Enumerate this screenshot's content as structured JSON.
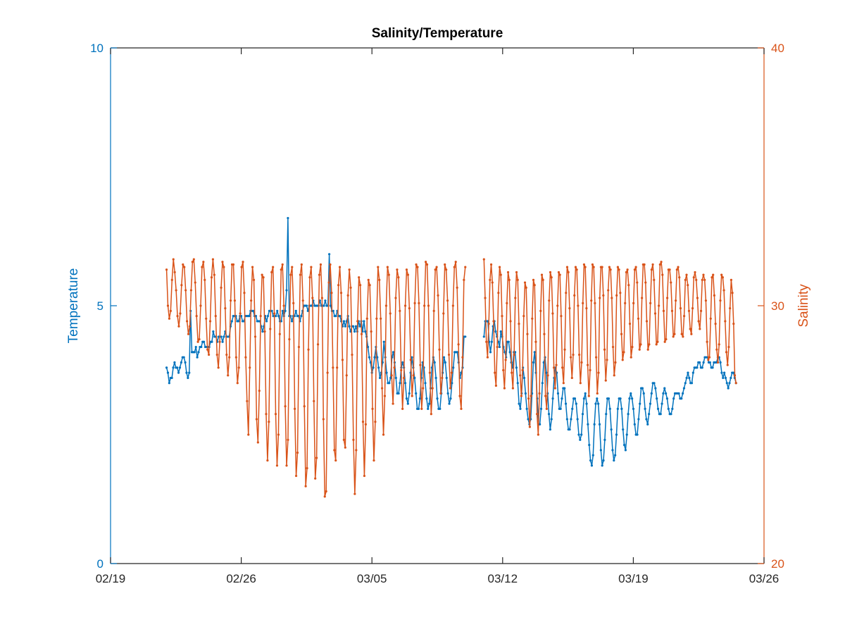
{
  "chart_data": {
    "type": "line",
    "title": "Salinity/Temperature",
    "x_ticks": [
      "02/19",
      "02/26",
      "03/05",
      "03/12",
      "03/19",
      "03/26"
    ],
    "x_range": [
      "02/19",
      "03/26"
    ],
    "left_axis": {
      "label": "Temperature",
      "range": [
        0,
        10
      ],
      "ticks": [
        "0",
        "5",
        "10"
      ],
      "color": "#0072BD"
    },
    "right_axis": {
      "label": "Salinity",
      "range": [
        20,
        40
      ],
      "ticks": [
        "20",
        "30",
        "40"
      ],
      "color": "#D95319"
    },
    "grid": false,
    "legend": "none",
    "sampling_interval_hours": 2,
    "series": [
      {
        "axis": "left",
        "color": "#0072BD",
        "segments": [
          {
            "t_start": "02/22 00:00",
            "t_end": "03/10 00:00",
            "values": [
              3.8,
              3.7,
              3.5,
              3.6,
              3.6,
              3.8,
              3.9,
              3.8,
              3.8,
              3.7,
              3.8,
              3.9,
              4.0,
              4.0,
              3.9,
              3.7,
              3.6,
              3.7,
              4.9,
              4.1,
              4.1,
              4.1,
              4.2,
              4.0,
              4.1,
              4.2,
              4.2,
              4.3,
              4.3,
              4.2,
              4.2,
              4.2,
              4.2,
              4.3,
              4.3,
              4.5,
              4.4,
              4.4,
              4.3,
              4.4,
              4.4,
              4.4,
              4.3,
              4.4,
              4.5,
              4.4,
              4.4,
              4.4,
              4.6,
              4.7,
              4.8,
              4.8,
              4.8,
              4.7,
              4.7,
              4.8,
              4.8,
              4.7,
              4.7,
              4.8,
              4.8,
              4.8,
              4.8,
              4.9,
              4.9,
              4.9,
              4.8,
              4.8,
              4.7,
              4.7,
              4.7,
              4.6,
              4.5,
              4.6,
              4.8,
              4.7,
              4.8,
              4.9,
              4.9,
              4.9,
              4.8,
              4.8,
              4.8,
              4.9,
              4.8,
              4.7,
              4.7,
              4.9,
              4.8,
              4.9,
              5.3,
              6.7,
              4.8,
              4.8,
              4.7,
              4.8,
              4.8,
              4.9,
              4.8,
              4.8,
              4.7,
              4.8,
              4.9,
              5.0,
              5.0,
              5.0,
              4.9,
              5.0,
              5.0,
              5.0,
              5.1,
              5.0,
              5.0,
              5.0,
              5.0,
              5.1,
              5.0,
              5.0,
              5.0,
              5.1,
              5.0,
              5.0,
              6.0,
              5.0,
              4.9,
              4.9,
              4.8,
              4.8,
              4.9,
              4.8,
              4.8,
              4.7,
              4.6,
              4.7,
              4.6,
              4.7,
              4.8,
              4.6,
              4.5,
              4.6,
              4.6,
              4.5,
              4.6,
              4.5,
              4.7,
              4.6,
              4.7,
              4.5,
              4.7,
              4.5,
              4.4,
              4.2,
              4.0,
              3.9,
              3.7,
              3.8,
              4.0,
              4.2,
              4.0,
              3.8,
              3.6,
              3.7,
              3.9,
              4.3,
              4.0,
              3.7,
              3.5,
              3.5,
              3.6,
              4.0,
              4.1,
              3.9,
              3.6,
              3.3,
              3.3,
              3.5,
              3.8,
              3.9,
              3.8,
              3.5,
              3.2,
              3.1,
              3.3,
              3.7,
              4.0,
              3.8,
              3.6,
              3.3,
              3.0,
              3.0,
              3.2,
              3.6,
              3.9,
              3.8,
              3.5,
              3.2,
              3.0,
              3.1,
              3.4,
              3.8,
              4.0,
              3.9,
              3.6,
              3.2,
              3.0,
              3.0,
              3.3,
              3.7,
              4.0,
              3.9,
              3.6,
              3.3,
              3.1,
              3.2,
              3.5,
              3.8,
              4.1,
              4.1,
              4.1,
              3.9,
              3.6,
              3.7,
              3.8,
              4.4,
              4.4
            ]
          },
          {
            "t_start": "03/11 00:00",
            "t_end": "03/24 12:00",
            "values": [
              4.4,
              4.7,
              4.7,
              4.7,
              4.3,
              4.1,
              4.3,
              4.6,
              4.7,
              4.5,
              4.4,
              4.3,
              4.2,
              4.5,
              4.4,
              4.2,
              4.1,
              4.0,
              4.3,
              4.3,
              4.1,
              3.9,
              3.8,
              4.1,
              4.1,
              3.8,
              3.5,
              3.1,
              3.0,
              3.3,
              3.8,
              3.6,
              3.3,
              3.0,
              2.8,
              2.7,
              2.8,
              3.3,
              3.9,
              4.1,
              3.7,
              3.2,
              2.7,
              2.7,
              3.0,
              3.5,
              3.9,
              4.0,
              3.7,
              3.3,
              2.9,
              2.6,
              2.8,
              3.2,
              3.6,
              3.8,
              3.7,
              3.3,
              3.0,
              3.0,
              3.2,
              3.4,
              3.4,
              3.1,
              2.8,
              2.6,
              2.6,
              2.8,
              3.0,
              3.2,
              3.2,
              3.1,
              2.8,
              2.5,
              2.4,
              2.5,
              2.9,
              3.2,
              3.3,
              3.1,
              2.7,
              2.3,
              2.0,
              1.9,
              2.1,
              2.7,
              3.1,
              3.2,
              3.1,
              2.7,
              2.2,
              1.9,
              2.0,
              2.4,
              2.9,
              3.2,
              3.2,
              3.0,
              2.6,
              2.2,
              2.0,
              2.1,
              2.5,
              3.0,
              3.2,
              3.2,
              3.0,
              2.6,
              2.3,
              2.2,
              2.5,
              2.9,
              3.2,
              3.3,
              3.2,
              3.0,
              2.7,
              2.5,
              2.5,
              2.8,
              3.1,
              3.4,
              3.4,
              3.3,
              3.0,
              2.8,
              2.7,
              2.9,
              3.1,
              3.3,
              3.5,
              3.5,
              3.4,
              3.2,
              3.0,
              2.9,
              2.9,
              3.1,
              3.3,
              3.4,
              3.3,
              3.2,
              3.0,
              2.9,
              2.9,
              3.0,
              3.2,
              3.3,
              3.3,
              3.3,
              3.3,
              3.2,
              3.2,
              3.3,
              3.4,
              3.5,
              3.6,
              3.7,
              3.6,
              3.5,
              3.5,
              3.7,
              3.8,
              3.8,
              3.8,
              3.9,
              3.9,
              3.8,
              3.8,
              3.9,
              4.0,
              4.0,
              4.0,
              3.9,
              3.9,
              3.8,
              3.8,
              3.9,
              3.9,
              3.9,
              4.0,
              4.0,
              3.9,
              3.7,
              3.6,
              3.7,
              3.6,
              3.5,
              3.4,
              3.5,
              3.6,
              3.7,
              3.7,
              3.6,
              3.5
            ]
          }
        ]
      },
      {
        "axis": "right",
        "color": "#D95319",
        "segments": [
          {
            "t_start": "02/22 00:00",
            "t_end": "03/10 00:00",
            "values": [
              31.4,
              30.0,
              29.5,
              29.8,
              31.0,
              31.8,
              31.3,
              30.6,
              29.6,
              29.2,
              29.7,
              30.8,
              31.6,
              31.5,
              30.6,
              29.4,
              28.9,
              29.2,
              30.6,
              31.7,
              31.8,
              30.9,
              29.6,
              28.6,
              28.7,
              30.0,
              31.5,
              31.7,
              31.0,
              29.5,
              28.3,
              28.1,
              29.4,
              31.1,
              31.8,
              31.2,
              29.6,
              28.1,
              27.6,
              28.6,
              30.7,
              31.7,
              31.5,
              29.9,
              28.1,
              27.3,
              28.0,
              30.2,
              31.6,
              31.6,
              30.2,
              28.0,
              27.0,
              27.6,
              29.7,
              31.5,
              31.7,
              30.5,
              28.0,
              26.3,
              25.0,
              27.6,
              30.2,
              31.5,
              31.0,
              28.8,
              25.6,
              24.7,
              26.7,
              29.6,
              31.2,
              31.1,
              29.0,
              25.8,
              24.0,
              25.5,
              29.1,
              31.3,
              31.5,
              29.7,
              25.8,
              23.8,
              25.0,
              28.9,
              31.4,
              31.6,
              30.0,
              26.1,
              23.8,
              24.8,
              28.7,
              31.2,
              31.5,
              30.1,
              26.0,
              23.4,
              24.3,
              28.4,
              31.2,
              31.6,
              30.2,
              26.1,
              23.0,
              23.7,
              28.3,
              31.1,
              31.5,
              30.3,
              26.3,
              23.3,
              24.1,
              28.5,
              31.2,
              31.6,
              30.3,
              25.6,
              22.6,
              22.8,
              27.4,
              30.9,
              31.6,
              30.5,
              27.6,
              24.4,
              24.0,
              27.6,
              30.8,
              31.5,
              30.5,
              27.9,
              24.8,
              24.5,
              27.3,
              30.4,
              31.4,
              30.7,
              28.1,
              24.8,
              22.7,
              24.4,
              29.4,
              31.1,
              30.8,
              28.9,
              25.5,
              23.4,
              25.4,
              29.5,
              31.0,
              30.8,
              29.0,
              26.0,
              24.0,
              25.5,
              29.5,
              31.5,
              31.0,
              29.5,
              26.8,
              25.0,
              26.5,
              30.0,
              31.5,
              31.2,
              29.7,
              27.3,
              26.2,
              27.6,
              30.3,
              31.4,
              31.1,
              29.8,
              27.5,
              26.0,
              27.2,
              30.0,
              31.4,
              31.2,
              29.9,
              27.9,
              26.5,
              27.3,
              30.1,
              31.6,
              31.5,
              30.1,
              27.7,
              26.0,
              26.8,
              30.0,
              31.7,
              31.6,
              30.0,
              27.4,
              25.8,
              26.8,
              29.8,
              31.4,
              31.5,
              30.4,
              28.3,
              26.6,
              27.2,
              29.7,
              31.6,
              31.4,
              30.2,
              28.1,
              26.8,
              27.4,
              30.0,
              31.5,
              31.7,
              30.7,
              28.5,
              26.5,
              26.0,
              28.0,
              31.0,
              31.5
            ]
          },
          {
            "t_start": "03/11 00:00",
            "t_end": "03/24 12:00",
            "values": [
              31.8,
              30.3,
              28.6,
              28.0,
              29.3,
              31.0,
              31.6,
              30.9,
              29.4,
              27.4,
              26.9,
              28.4,
              30.5,
              31.5,
              31.2,
              29.6,
              27.5,
              26.8,
              27.9,
              30.1,
              31.3,
              31.0,
              29.4,
              27.4,
              26.8,
              28.1,
              30.3,
              31.3,
              31.0,
              29.3,
              27.3,
              26.5,
              27.5,
              29.6,
              30.9,
              30.7,
              28.9,
              26.4,
              25.3,
              26.5,
              29.5,
              31.0,
              30.8,
              28.6,
              25.8,
              25.0,
              26.6,
              29.8,
              31.2,
              31.0,
              28.9,
              26.5,
              26.0,
              27.3,
              30.2,
              31.3,
              31.1,
              29.7,
              27.6,
              26.8,
              27.7,
              30.0,
              31.3,
              31.2,
              29.6,
              27.6,
              27.0,
              28.3,
              30.5,
              31.5,
              31.3,
              29.9,
              28.0,
              27.2,
              28.1,
              30.4,
              31.5,
              31.4,
              30.0,
              28.1,
              27.0,
              27.8,
              30.1,
              31.6,
              31.5,
              29.9,
              27.7,
              26.5,
              27.5,
              30.2,
              31.6,
              31.5,
              30.1,
              28.0,
              26.6,
              27.4,
              30.3,
              31.5,
              31.5,
              30.4,
              28.3,
              27.1,
              27.9,
              30.6,
              31.5,
              31.4,
              30.3,
              28.4,
              27.3,
              27.8,
              30.4,
              31.5,
              31.4,
              30.5,
              28.9,
              27.9,
              28.2,
              30.1,
              31.3,
              31.4,
              30.8,
              29.3,
              28.0,
              28.4,
              30.1,
              31.4,
              31.5,
              30.9,
              29.5,
              28.3,
              28.5,
              30.3,
              31.6,
              31.6,
              30.9,
              29.4,
              28.3,
              28.5,
              30.1,
              31.4,
              31.6,
              31.0,
              29.7,
              28.5,
              28.6,
              30.0,
              31.6,
              31.7,
              31.2,
              29.8,
              28.6,
              28.7,
              30.3,
              31.4,
              31.4,
              30.9,
              29.8,
              28.8,
              28.9,
              30.2,
              31.4,
              31.5,
              31.1,
              29.9,
              28.9,
              28.8,
              29.6,
              31.0,
              31.2,
              30.8,
              29.8,
              29.1,
              28.9,
              29.9,
              31.1,
              31.3,
              31.0,
              30.3,
              29.4,
              29.1,
              29.8,
              31.0,
              31.2,
              31.0,
              30.2,
              28.6,
              27.9,
              28.0,
              29.5,
              31.1,
              31.2,
              30.4,
              29.3,
              28.3,
              27.8,
              28.5,
              30.2,
              31.2,
              31.1,
              30.6,
              29.4,
              28.2,
              27.7,
              28.4,
              29.9,
              31.0,
              30.5,
              29.3,
              27.3,
              27.0
            ]
          }
        ]
      }
    ]
  }
}
